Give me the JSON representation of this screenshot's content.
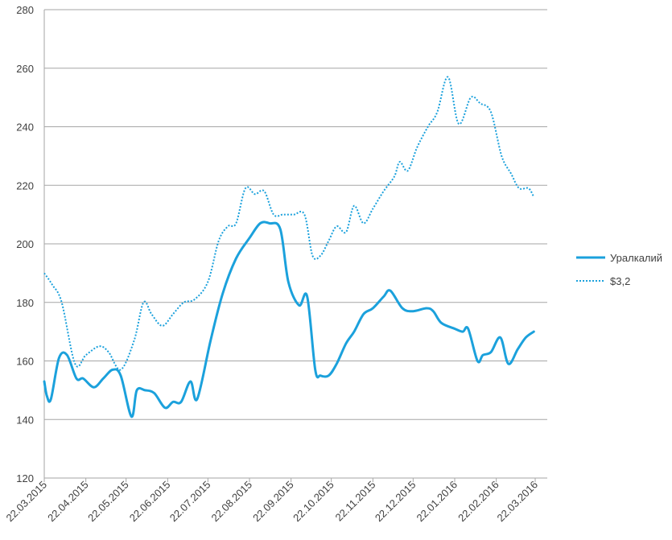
{
  "chart_data": {
    "type": "line",
    "title": "",
    "xlabel": "",
    "ylabel": "",
    "ylim": [
      120,
      280
    ],
    "yticks": [
      120,
      140,
      160,
      180,
      200,
      220,
      240,
      260,
      280
    ],
    "x_tick_labels": [
      "22.03.2015",
      "22.04.2015",
      "22.05.2015",
      "22.06.2015",
      "22.07.2015",
      "22.08.2015",
      "22.09.2015",
      "22.10.2015",
      "22.11.2015",
      "22.12.2015",
      "22.01.2016",
      "22.02.2016",
      "22.03.2016"
    ],
    "grid": true,
    "legend_position": "right",
    "x_start": "2015-03-22",
    "x_end": "2016-03-31",
    "series": [
      {
        "name": "Уралкалий",
        "style": "solid",
        "color": "#1ba1dc",
        "points": [
          [
            "2015-03-22",
            153
          ],
          [
            "2015-03-24",
            148
          ],
          [
            "2015-03-27",
            147
          ],
          [
            "2015-04-02",
            161
          ],
          [
            "2015-04-08",
            162
          ],
          [
            "2015-04-15",
            154
          ],
          [
            "2015-04-20",
            154
          ],
          [
            "2015-04-28",
            151
          ],
          [
            "2015-05-05",
            154
          ],
          [
            "2015-05-12",
            157
          ],
          [
            "2015-05-18",
            155
          ],
          [
            "2015-05-26",
            141
          ],
          [
            "2015-05-30",
            150
          ],
          [
            "2015-06-05",
            150
          ],
          [
            "2015-06-12",
            149
          ],
          [
            "2015-06-20",
            144
          ],
          [
            "2015-06-26",
            146
          ],
          [
            "2015-07-02",
            146
          ],
          [
            "2015-07-09",
            153
          ],
          [
            "2015-07-14",
            147
          ],
          [
            "2015-07-24",
            167
          ],
          [
            "2015-08-02",
            183
          ],
          [
            "2015-08-12",
            195
          ],
          [
            "2015-08-22",
            202
          ],
          [
            "2015-08-30",
            207
          ],
          [
            "2015-09-06",
            207
          ],
          [
            "2015-09-14",
            205
          ],
          [
            "2015-09-20",
            187
          ],
          [
            "2015-09-28",
            179
          ],
          [
            "2015-10-04",
            182
          ],
          [
            "2015-10-10",
            157
          ],
          [
            "2015-10-14",
            155
          ],
          [
            "2015-10-20",
            155
          ],
          [
            "2015-10-26",
            159
          ],
          [
            "2015-11-02",
            166
          ],
          [
            "2015-11-08",
            170
          ],
          [
            "2015-11-15",
            176
          ],
          [
            "2015-11-22",
            178
          ],
          [
            "2015-11-30",
            182
          ],
          [
            "2015-12-05",
            184
          ],
          [
            "2015-12-14",
            178
          ],
          [
            "2015-12-22",
            177
          ],
          [
            "2016-01-01",
            178
          ],
          [
            "2016-01-06",
            177
          ],
          [
            "2016-01-12",
            173
          ],
          [
            "2016-01-22",
            171
          ],
          [
            "2016-01-28",
            170
          ],
          [
            "2016-02-01",
            171
          ],
          [
            "2016-02-08",
            160
          ],
          [
            "2016-02-12",
            162
          ],
          [
            "2016-02-18",
            163
          ],
          [
            "2016-02-25",
            168
          ],
          [
            "2016-03-02",
            159
          ],
          [
            "2016-03-09",
            164
          ],
          [
            "2016-03-15",
            168
          ],
          [
            "2016-03-21",
            170
          ]
        ]
      },
      {
        "name": "$3,2",
        "style": "dotted",
        "color": "#1ba1dc",
        "points": [
          [
            "2015-03-22",
            190
          ],
          [
            "2015-03-28",
            186
          ],
          [
            "2015-04-04",
            180
          ],
          [
            "2015-04-14",
            159
          ],
          [
            "2015-04-22",
            162
          ],
          [
            "2015-05-02",
            165
          ],
          [
            "2015-05-09",
            163
          ],
          [
            "2015-05-18",
            157
          ],
          [
            "2015-05-28",
            167
          ],
          [
            "2015-06-04",
            180
          ],
          [
            "2015-06-10",
            176
          ],
          [
            "2015-06-18",
            172
          ],
          [
            "2015-06-26",
            176
          ],
          [
            "2015-07-04",
            180
          ],
          [
            "2015-07-12",
            181
          ],
          [
            "2015-07-22",
            187
          ],
          [
            "2015-07-30",
            201
          ],
          [
            "2015-08-06",
            206
          ],
          [
            "2015-08-12",
            207
          ],
          [
            "2015-08-19",
            219
          ],
          [
            "2015-08-26",
            217
          ],
          [
            "2015-09-02",
            218
          ],
          [
            "2015-09-09",
            210
          ],
          [
            "2015-09-16",
            210
          ],
          [
            "2015-09-24",
            210
          ],
          [
            "2015-10-02",
            210
          ],
          [
            "2015-10-08",
            196
          ],
          [
            "2015-10-14",
            196
          ],
          [
            "2015-10-20",
            201
          ],
          [
            "2015-10-26",
            206
          ],
          [
            "2015-11-02",
            204
          ],
          [
            "2015-11-08",
            213
          ],
          [
            "2015-11-15",
            207
          ],
          [
            "2015-11-22",
            212
          ],
          [
            "2015-11-30",
            218
          ],
          [
            "2015-12-08",
            223
          ],
          [
            "2015-12-12",
            228
          ],
          [
            "2015-12-18",
            225
          ],
          [
            "2015-12-25",
            233
          ],
          [
            "2016-01-02",
            240
          ],
          [
            "2016-01-09",
            245
          ],
          [
            "2016-01-17",
            257
          ],
          [
            "2016-01-25",
            241
          ],
          [
            "2016-02-03",
            250
          ],
          [
            "2016-02-10",
            248
          ],
          [
            "2016-02-18",
            245
          ],
          [
            "2016-02-26",
            230
          ],
          [
            "2016-03-04",
            224
          ],
          [
            "2016-03-10",
            219
          ],
          [
            "2016-03-17",
            219
          ],
          [
            "2016-03-21",
            216
          ]
        ]
      }
    ]
  }
}
